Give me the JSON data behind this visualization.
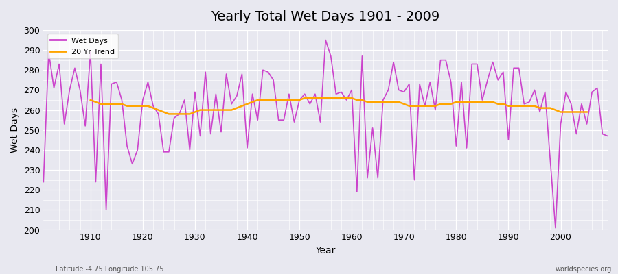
{
  "title": "Yearly Total Wet Days 1901 - 2009",
  "xlabel": "Year",
  "ylabel": "Wet Days",
  "ylim": [
    200,
    300
  ],
  "footer_left": "Latitude -4.75 Longitude 105.75",
  "footer_right": "worldspecies.org",
  "wet_days_color": "#CC44CC",
  "trend_color": "#FFA500",
  "bg_color": "#E8E8F0",
  "years": [
    1901,
    1902,
    1903,
    1904,
    1905,
    1906,
    1907,
    1908,
    1909,
    1910,
    1911,
    1912,
    1913,
    1914,
    1915,
    1916,
    1917,
    1918,
    1919,
    1920,
    1921,
    1922,
    1923,
    1924,
    1925,
    1926,
    1927,
    1928,
    1929,
    1930,
    1931,
    1932,
    1933,
    1934,
    1935,
    1936,
    1937,
    1938,
    1939,
    1940,
    1941,
    1942,
    1943,
    1944,
    1945,
    1946,
    1947,
    1948,
    1949,
    1950,
    1951,
    1952,
    1953,
    1954,
    1955,
    1956,
    1957,
    1958,
    1959,
    1960,
    1961,
    1962,
    1963,
    1964,
    1965,
    1966,
    1967,
    1968,
    1969,
    1970,
    1971,
    1972,
    1973,
    1974,
    1975,
    1976,
    1977,
    1978,
    1979,
    1980,
    1981,
    1982,
    1983,
    1984,
    1985,
    1986,
    1987,
    1988,
    1989,
    1990,
    1991,
    1992,
    1993,
    1994,
    1995,
    1996,
    1997,
    1998,
    1999,
    2000,
    2001,
    2002,
    2003,
    2004,
    2005,
    2006,
    2007,
    2008,
    2009
  ],
  "wet_days": [
    224,
    289,
    271,
    283,
    253,
    270,
    281,
    270,
    252,
    289,
    224,
    283,
    210,
    273,
    274,
    265,
    242,
    233,
    240,
    265,
    274,
    262,
    258,
    239,
    239,
    256,
    258,
    265,
    240,
    269,
    247,
    279,
    248,
    268,
    249,
    278,
    263,
    267,
    278,
    241,
    268,
    255,
    280,
    279,
    275,
    255,
    255,
    268,
    254,
    265,
    268,
    263,
    268,
    254,
    295,
    287,
    268,
    269,
    265,
    270,
    219,
    287,
    226,
    251,
    226,
    265,
    270,
    284,
    270,
    269,
    273,
    225,
    273,
    262,
    274,
    260,
    285,
    285,
    274,
    242,
    274,
    241,
    283,
    283,
    265,
    275,
    284,
    275,
    279,
    245,
    281,
    281,
    263,
    264,
    270,
    259,
    269,
    235,
    201,
    253,
    269,
    263,
    248,
    263,
    253,
    269,
    271,
    248,
    247
  ],
  "trend_years": [
    1910,
    1911,
    1912,
    1913,
    1914,
    1915,
    1916,
    1917,
    1918,
    1919,
    1920,
    1921,
    1922,
    1923,
    1924,
    1925,
    1926,
    1927,
    1928,
    1929,
    1930,
    1931,
    1932,
    1933,
    1934,
    1935,
    1936,
    1937,
    1938,
    1939,
    1940,
    1941,
    1942,
    1943,
    1944,
    1945,
    1946,
    1947,
    1948,
    1949,
    1950,
    1951,
    1952,
    1953,
    1954,
    1955,
    1956,
    1957,
    1958,
    1959,
    1960,
    1961,
    1962,
    1963,
    1964,
    1965,
    1966,
    1967,
    1968,
    1969,
    1970,
    1971,
    1972,
    1973,
    1974,
    1975,
    1976,
    1977,
    1978,
    1979,
    1980,
    1981,
    1982,
    1983,
    1984,
    1985,
    1986,
    1987,
    1988,
    1989,
    1990,
    1991,
    1992,
    1993,
    1994,
    1995,
    1996,
    1997,
    1998,
    1999,
    2000,
    2001,
    2002,
    2003,
    2004,
    2005
  ],
  "trend_values": [
    265,
    264,
    263,
    263,
    263,
    263,
    263,
    262,
    262,
    262,
    262,
    262,
    261,
    260,
    259,
    258,
    258,
    258,
    258,
    258,
    259,
    260,
    260,
    260,
    260,
    260,
    260,
    260,
    261,
    262,
    263,
    264,
    265,
    265,
    265,
    265,
    265,
    265,
    265,
    265,
    265,
    266,
    266,
    266,
    266,
    266,
    266,
    266,
    266,
    266,
    266,
    265,
    265,
    264,
    264,
    264,
    264,
    264,
    264,
    264,
    263,
    262,
    262,
    262,
    262,
    262,
    262,
    263,
    263,
    263,
    264,
    264,
    264,
    264,
    264,
    264,
    264,
    264,
    263,
    263,
    262,
    262,
    262,
    262,
    262,
    262,
    261,
    261,
    261,
    260,
    259,
    259,
    259,
    259,
    259,
    259
  ]
}
